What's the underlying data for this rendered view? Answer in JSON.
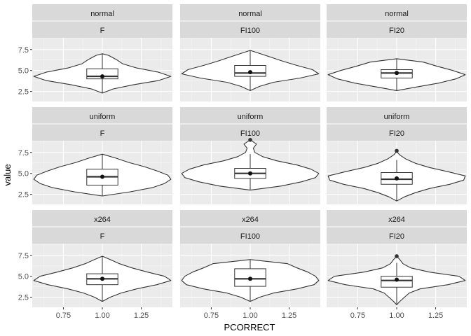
{
  "chart_data": {
    "type": "violin",
    "xlabel": "PCORRECT",
    "ylabel": "value",
    "xlim": [
      0.55,
      1.45
    ],
    "ylim": [
      1.3,
      8.9
    ],
    "x_ticks": [
      0.75,
      1.0,
      1.25
    ],
    "x_tick_labels": [
      "0.75",
      "1.00",
      "1.25"
    ],
    "y_ticks": [
      2.5,
      5.0,
      7.5
    ],
    "y_tick_labels": [
      "2.5",
      "5.0",
      "7.5"
    ],
    "rows": [
      "normal",
      "uniform",
      "x264"
    ],
    "cols": [
      "F",
      "FI100",
      "FI20"
    ],
    "panels": [
      {
        "row": "normal",
        "col": "F",
        "x": 1.0,
        "violin_y": [
          2.3,
          2.8,
          3.3,
          3.8,
          4.3,
          4.8,
          5.3,
          5.8,
          6.3,
          6.8,
          7.0
        ],
        "violin_hw": [
          0.0,
          0.07,
          0.2,
          0.36,
          0.44,
          0.36,
          0.22,
          0.13,
          0.09,
          0.04,
          0.0
        ],
        "box": {
          "q1": 4.0,
          "median": 4.3,
          "q3": 5.2,
          "lower": 2.3,
          "upper": 7.0
        },
        "mean": 4.3,
        "outliers": []
      },
      {
        "row": "normal",
        "col": "FI100",
        "x": 1.0,
        "violin_y": [
          2.6,
          3.1,
          3.6,
          4.1,
          4.6,
          5.1,
          5.6,
          6.1,
          6.6,
          7.1,
          7.4
        ],
        "violin_hw": [
          0.0,
          0.06,
          0.15,
          0.32,
          0.44,
          0.4,
          0.3,
          0.21,
          0.13,
          0.05,
          0.0
        ],
        "box": {
          "q1": 4.3,
          "median": 4.7,
          "q3": 5.6,
          "lower": 2.6,
          "upper": 7.4
        },
        "mean": 4.8,
        "outliers": []
      },
      {
        "row": "normal",
        "col": "FI20",
        "x": 1.0,
        "violin_y": [
          2.6,
          3.0,
          3.5,
          4.0,
          4.5,
          5.0,
          5.5,
          6.0,
          6.4
        ],
        "violin_hw": [
          0.0,
          0.12,
          0.27,
          0.38,
          0.44,
          0.36,
          0.26,
          0.17,
          0.0
        ],
        "box": {
          "q1": 4.1,
          "median": 4.7,
          "q3": 5.1,
          "lower": 2.6,
          "upper": 6.4
        },
        "mean": 4.7,
        "outliers": []
      },
      {
        "row": "uniform",
        "col": "F",
        "x": 1.0,
        "violin_y": [
          2.3,
          2.8,
          3.3,
          3.8,
          4.3,
          4.8,
          5.3,
          5.8,
          6.3,
          6.8,
          7.3
        ],
        "violin_hw": [
          0.0,
          0.18,
          0.32,
          0.4,
          0.44,
          0.42,
          0.35,
          0.27,
          0.17,
          0.09,
          0.0
        ],
        "box": {
          "q1": 3.6,
          "median": 4.6,
          "q3": 5.5,
          "lower": 2.3,
          "upper": 7.3
        },
        "mean": 4.6,
        "outliers": []
      },
      {
        "row": "uniform",
        "col": "FI100",
        "x": 1.0,
        "violin_y": [
          3.0,
          3.5,
          4.0,
          4.5,
          5.0,
          5.5,
          6.0,
          6.5,
          7.0,
          7.5,
          8.0,
          8.5,
          9.0
        ],
        "violin_hw": [
          0.0,
          0.2,
          0.33,
          0.42,
          0.44,
          0.39,
          0.3,
          0.17,
          0.08,
          0.03,
          0.02,
          0.04,
          0.0
        ],
        "box": {
          "q1": 4.4,
          "median": 5.0,
          "q3": 5.6,
          "lower": 3.0,
          "upper": 7.3
        },
        "mean": 5.0,
        "outliers": [
          9.0
        ]
      },
      {
        "row": "uniform",
        "col": "FI20",
        "x": 1.0,
        "violin_y": [
          1.7,
          2.2,
          2.7,
          3.2,
          3.7,
          4.2,
          4.7,
          5.2,
          5.7,
          6.2,
          6.7,
          7.2,
          7.6
        ],
        "violin_hw": [
          0.0,
          0.05,
          0.12,
          0.21,
          0.34,
          0.43,
          0.44,
          0.33,
          0.21,
          0.12,
          0.06,
          0.02,
          0.0
        ],
        "box": {
          "q1": 3.7,
          "median": 4.3,
          "q3": 5.1,
          "lower": 1.7,
          "upper": 6.6
        },
        "mean": 4.4,
        "outliers": [
          7.7
        ]
      },
      {
        "row": "x264",
        "col": "F",
        "x": 1.0,
        "violin_y": [
          2.0,
          2.5,
          3.0,
          3.5,
          4.0,
          4.5,
          5.0,
          5.5,
          6.0,
          6.5,
          7.0,
          7.4
        ],
        "violin_hw": [
          0.0,
          0.05,
          0.12,
          0.22,
          0.35,
          0.44,
          0.4,
          0.29,
          0.19,
          0.11,
          0.05,
          0.0
        ],
        "box": {
          "q1": 4.0,
          "median": 4.7,
          "q3": 5.3,
          "lower": 2.0,
          "upper": 7.4
        },
        "mean": 4.7,
        "outliers": []
      },
      {
        "row": "x264",
        "col": "FI100",
        "x": 1.0,
        "violin_y": [
          2.0,
          2.5,
          3.0,
          3.5,
          4.0,
          4.5,
          5.0,
          5.5,
          6.0,
          6.5,
          7.0
        ],
        "violin_hw": [
          0.0,
          0.06,
          0.15,
          0.3,
          0.41,
          0.44,
          0.42,
          0.37,
          0.3,
          0.24,
          0.0
        ],
        "box": {
          "q1": 3.8,
          "median": 4.7,
          "q3": 5.9,
          "lower": 2.0,
          "upper": 7.0
        },
        "mean": 4.7,
        "outliers": []
      },
      {
        "row": "x264",
        "col": "FI20",
        "x": 1.0,
        "violin_y": [
          1.6,
          2.0,
          2.5,
          3.0,
          3.5,
          4.0,
          4.5,
          5.0,
          5.5,
          6.0,
          6.5,
          7.0,
          7.4
        ],
        "violin_hw": [
          0.0,
          0.02,
          0.05,
          0.08,
          0.15,
          0.33,
          0.44,
          0.4,
          0.21,
          0.09,
          0.04,
          0.02,
          0.0
        ],
        "box": {
          "q1": 3.7,
          "median": 4.5,
          "q3": 5.0,
          "lower": 1.6,
          "upper": 6.6
        },
        "mean": 4.6,
        "outliers": [
          7.4
        ]
      }
    ]
  },
  "colors": {
    "panel_bg": "#ebebeb",
    "grid_major": "#ffffff",
    "grid_minor": "#f5f5f5",
    "strip_bg": "#d9d9d9",
    "violin_fill": "#ffffff",
    "ink": "#333333",
    "tick_text": "#4d4d4d"
  }
}
